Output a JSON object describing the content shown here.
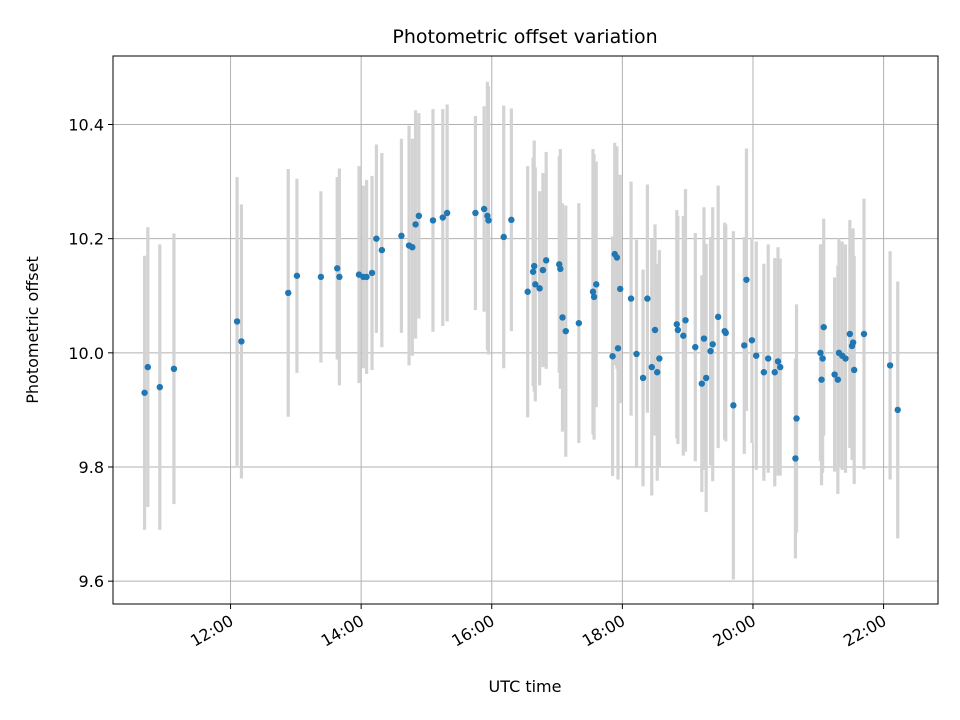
{
  "chart_data": {
    "type": "scatter",
    "title": "Photometric offset variation",
    "xlabel": "UTC time",
    "ylabel": "Photometric offset",
    "x_ticks": [
      "12:00",
      "14:00",
      "16:00",
      "18:00",
      "20:00",
      "22:00"
    ],
    "y_ticks": [
      "9.6",
      "9.8",
      "10.0",
      "10.2",
      "10.4"
    ],
    "xlim": [
      "10:12",
      "22:50"
    ],
    "ylim": [
      9.56,
      10.52
    ],
    "grid": true,
    "colors": {
      "points": "#1f77b4",
      "errorbars": "#d3d3d3",
      "grid": "#b0b0b0"
    },
    "points": [
      {
        "t": "10:41",
        "y": 9.93,
        "err": 0.24
      },
      {
        "t": "10:44",
        "y": 9.975,
        "err": 0.245
      },
      {
        "t": "10:55",
        "y": 9.94,
        "err": 0.25
      },
      {
        "t": "11:08",
        "y": 9.972,
        "err": 0.237
      },
      {
        "t": "12:06",
        "y": 10.055,
        "err": 0.253
      },
      {
        "t": "12:10",
        "y": 10.02,
        "err": 0.24
      },
      {
        "t": "12:53",
        "y": 10.105,
        "err": 0.217
      },
      {
        "t": "13:01",
        "y": 10.135,
        "err": 0.17
      },
      {
        "t": "13:23",
        "y": 10.133,
        "err": 0.15
      },
      {
        "t": "13:38",
        "y": 10.148,
        "err": 0.16
      },
      {
        "t": "13:40",
        "y": 10.133,
        "err": 0.19
      },
      {
        "t": "13:58",
        "y": 10.137,
        "err": 0.19
      },
      {
        "t": "14:02",
        "y": 10.133,
        "err": 0.16
      },
      {
        "t": "14:05",
        "y": 10.133,
        "err": 0.17
      },
      {
        "t": "14:10",
        "y": 10.14,
        "err": 0.17
      },
      {
        "t": "14:14",
        "y": 10.2,
        "err": 0.165
      },
      {
        "t": "14:19",
        "y": 10.18,
        "err": 0.17
      },
      {
        "t": "14:37",
        "y": 10.205,
        "err": 0.17
      },
      {
        "t": "14:44",
        "y": 10.188,
        "err": 0.21
      },
      {
        "t": "14:47",
        "y": 10.185,
        "err": 0.19
      },
      {
        "t": "14:50",
        "y": 10.225,
        "err": 0.2
      },
      {
        "t": "14:53",
        "y": 10.24,
        "err": 0.18
      },
      {
        "t": "15:06",
        "y": 10.232,
        "err": 0.195
      },
      {
        "t": "15:15",
        "y": 10.237,
        "err": 0.19
      },
      {
        "t": "15:19",
        "y": 10.245,
        "err": 0.19
      },
      {
        "t": "15:45",
        "y": 10.245,
        "err": 0.17
      },
      {
        "t": "15:53",
        "y": 10.252,
        "err": 0.18
      },
      {
        "t": "15:56",
        "y": 10.24,
        "err": 0.235
      },
      {
        "t": "15:57",
        "y": 10.232,
        "err": 0.235
      },
      {
        "t": "16:11",
        "y": 10.203,
        "err": 0.23
      },
      {
        "t": "16:18",
        "y": 10.233,
        "err": 0.195
      },
      {
        "t": "16:33",
        "y": 10.107,
        "err": 0.22
      },
      {
        "t": "16:38",
        "y": 10.142,
        "err": 0.2
      },
      {
        "t": "16:39",
        "y": 10.152,
        "err": 0.22
      },
      {
        "t": "16:40",
        "y": 10.12,
        "err": 0.205
      },
      {
        "t": "16:44",
        "y": 10.113,
        "err": 0.17
      },
      {
        "t": "16:47",
        "y": 10.145,
        "err": 0.17
      },
      {
        "t": "16:50",
        "y": 10.162,
        "err": 0.19
      },
      {
        "t": "17:02",
        "y": 10.155,
        "err": 0.19
      },
      {
        "t": "17:03",
        "y": 10.147,
        "err": 0.21
      },
      {
        "t": "17:05",
        "y": 10.062,
        "err": 0.2
      },
      {
        "t": "17:08",
        "y": 10.038,
        "err": 0.22
      },
      {
        "t": "17:20",
        "y": 10.052,
        "err": 0.21
      },
      {
        "t": "17:33",
        "y": 10.107,
        "err": 0.25
      },
      {
        "t": "17:34",
        "y": 10.098,
        "err": 0.25
      },
      {
        "t": "17:36",
        "y": 10.12,
        "err": 0.215
      },
      {
        "t": "17:51",
        "y": 9.994,
        "err": 0.21
      },
      {
        "t": "17:53",
        "y": 10.173,
        "err": 0.195
      },
      {
        "t": "17:55",
        "y": 10.167,
        "err": 0.195
      },
      {
        "t": "17:56",
        "y": 10.008,
        "err": 0.23
      },
      {
        "t": "17:58",
        "y": 10.112,
        "err": 0.2
      },
      {
        "t": "18:08",
        "y": 10.095,
        "err": 0.205
      },
      {
        "t": "18:13",
        "y": 9.998,
        "err": 0.2
      },
      {
        "t": "18:19",
        "y": 9.956,
        "err": 0.19
      },
      {
        "t": "18:23",
        "y": 10.095,
        "err": 0.2
      },
      {
        "t": "18:27",
        "y": 9.975,
        "err": 0.225
      },
      {
        "t": "18:30",
        "y": 10.04,
        "err": 0.185
      },
      {
        "t": "18:32",
        "y": 9.966,
        "err": 0.19
      },
      {
        "t": "18:34",
        "y": 9.99,
        "err": 0.19
      },
      {
        "t": "18:50",
        "y": 10.05,
        "err": 0.2
      },
      {
        "t": "18:51",
        "y": 10.04,
        "err": 0.2
      },
      {
        "t": "18:56",
        "y": 10.03,
        "err": 0.21
      },
      {
        "t": "18:58",
        "y": 10.057,
        "err": 0.23
      },
      {
        "t": "19:07",
        "y": 10.01,
        "err": 0.2
      },
      {
        "t": "19:13",
        "y": 9.946,
        "err": 0.19
      },
      {
        "t": "19:15",
        "y": 10.025,
        "err": 0.23
      },
      {
        "t": "19:17",
        "y": 9.956,
        "err": 0.235
      },
      {
        "t": "19:21",
        "y": 10.003,
        "err": 0.2
      },
      {
        "t": "19:23",
        "y": 10.015,
        "err": 0.24
      },
      {
        "t": "19:28",
        "y": 10.063,
        "err": 0.23
      },
      {
        "t": "19:34",
        "y": 10.038,
        "err": 0.19
      },
      {
        "t": "19:35",
        "y": 10.035,
        "err": 0.19
      },
      {
        "t": "19:42",
        "y": 9.908,
        "err": 0.305
      },
      {
        "t": "19:52",
        "y": 10.013,
        "err": 0.19
      },
      {
        "t": "19:54",
        "y": 10.128,
        "err": 0.23
      },
      {
        "t": "19:59",
        "y": 10.022,
        "err": 0.18
      },
      {
        "t": "20:03",
        "y": 9.995,
        "err": 0.2
      },
      {
        "t": "20:10",
        "y": 9.966,
        "err": 0.19
      },
      {
        "t": "20:14",
        "y": 9.99,
        "err": 0.2
      },
      {
        "t": "20:20",
        "y": 9.966,
        "err": 0.2
      },
      {
        "t": "20:23",
        "y": 9.985,
        "err": 0.2
      },
      {
        "t": "20:25",
        "y": 9.975,
        "err": 0.19
      },
      {
        "t": "20:39",
        "y": 9.815,
        "err": 0.175
      },
      {
        "t": "20:40",
        "y": 9.885,
        "err": 0.2
      },
      {
        "t": "21:02",
        "y": 10.0,
        "err": 0.19
      },
      {
        "t": "21:03",
        "y": 9.953,
        "err": 0.185
      },
      {
        "t": "21:04",
        "y": 9.99,
        "err": 0.2
      },
      {
        "t": "21:05",
        "y": 10.045,
        "err": 0.19
      },
      {
        "t": "21:15",
        "y": 9.962,
        "err": 0.17
      },
      {
        "t": "21:18",
        "y": 9.953,
        "err": 0.2
      },
      {
        "t": "21:19",
        "y": 10.0,
        "err": 0.2
      },
      {
        "t": "21:22",
        "y": 9.995,
        "err": 0.2
      },
      {
        "t": "21:25",
        "y": 9.99,
        "err": 0.2
      },
      {
        "t": "21:29",
        "y": 10.033,
        "err": 0.2
      },
      {
        "t": "21:31",
        "y": 10.012,
        "err": 0.2
      },
      {
        "t": "21:32",
        "y": 10.018,
        "err": 0.2
      },
      {
        "t": "21:33",
        "y": 9.97,
        "err": 0.2
      },
      {
        "t": "21:42",
        "y": 10.033,
        "err": 0.237
      },
      {
        "t": "22:06",
        "y": 9.978,
        "err": 0.2
      },
      {
        "t": "22:13",
        "y": 9.9,
        "err": 0.225
      }
    ]
  }
}
